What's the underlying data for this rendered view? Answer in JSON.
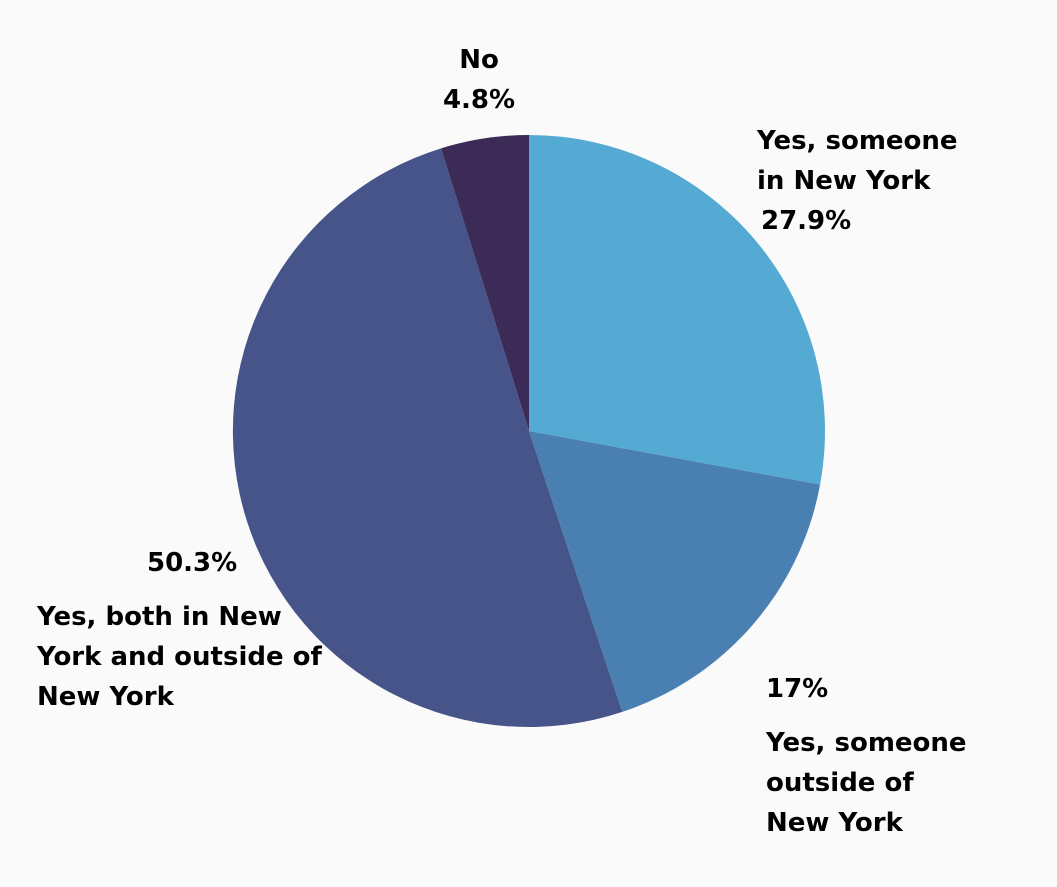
{
  "chart_data": {
    "type": "pie",
    "title": "",
    "start_angle_deg": 0,
    "direction": "clockwise",
    "legend": "none",
    "slices": [
      {
        "key": "someone-in-new-york",
        "label_lines": [
          "Yes, someone",
          "in New York"
        ],
        "value": 27.9,
        "value_label": "27.9%",
        "color": "#55aad3",
        "percent_first": false
      },
      {
        "key": "someone-outside-new-york",
        "label_lines": [
          "Yes, someone",
          "outside of",
          "New York"
        ],
        "value": 17,
        "value_label": "17%",
        "color": "#4a7fb2",
        "percent_first": true
      },
      {
        "key": "both-in-and-outside-new-york",
        "label_lines": [
          "Yes, both in New",
          "York and outside of",
          "New York"
        ],
        "value": 50.3,
        "value_label": "50.3%",
        "color": "#46548a",
        "percent_first": true
      },
      {
        "key": "no",
        "label_lines": [
          "No"
        ],
        "value": 4.8,
        "value_label": "4.8%",
        "color": "#3c2b57",
        "percent_first": false
      }
    ]
  }
}
